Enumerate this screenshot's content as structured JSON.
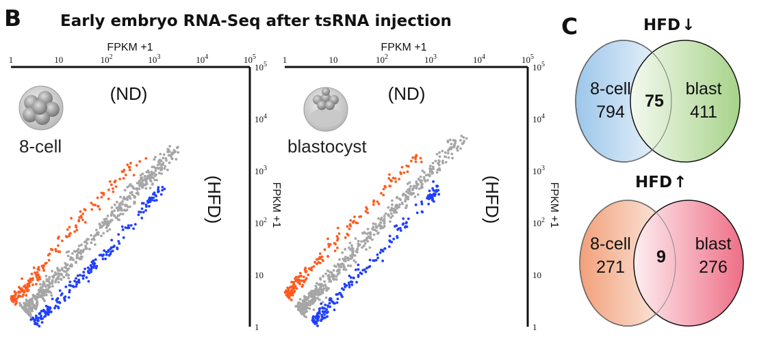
{
  "panel_b": {
    "letter": "B",
    "title": "Early embryo RNA-Seq after tsRNA injection"
  },
  "panel_c": {
    "letter": "C"
  },
  "chart_data": [
    {
      "type": "scatter",
      "stage_label": "8-cell",
      "x_axis_label": "FPKM +1",
      "y_axis_label": "FPKM +1",
      "x_group_label": "(ND)",
      "y_group_label": "(HFD)",
      "xscale": "log",
      "yscale": "log",
      "xlim": [
        1,
        100000
      ],
      "ylim": [
        1,
        100000
      ],
      "x_ticks": [
        "1",
        "10",
        "10^2",
        "10^3",
        "10^4",
        "10^5"
      ],
      "y_ticks": [
        "10^5",
        "10^4",
        "10^3",
        "10^2",
        "10",
        "1"
      ],
      "series": [
        {
          "color": "#a6a6a6",
          "points": [
            [
              2,
              2
            ],
            [
              5,
              5
            ],
            [
              20,
              20
            ],
            [
              100,
              100
            ],
            [
              400,
              400
            ],
            [
              1000,
              1000
            ],
            [
              3000,
              3000
            ]
          ]
        },
        {
          "color": "#ff5a1f",
          "points": [
            [
              1.1,
              3
            ],
            [
              2,
              6
            ],
            [
              5,
              15
            ],
            [
              20,
              80
            ],
            [
              100,
              400
            ],
            [
              600,
              2000
            ]
          ]
        },
        {
          "color": "#1f3fff",
          "points": [
            [
              3,
              1.2
            ],
            [
              8,
              2.5
            ],
            [
              30,
              9
            ],
            [
              150,
              40
            ],
            [
              700,
              200
            ],
            [
              1500,
              500
            ]
          ]
        }
      ]
    },
    {
      "type": "scatter",
      "stage_label": "blastocyst",
      "x_axis_label": "FPKM +1",
      "y_axis_label": "FPKM +1",
      "x_group_label": "(ND)",
      "y_group_label": "(HFD)",
      "xscale": "log",
      "yscale": "log",
      "xlim": [
        1,
        100000
      ],
      "ylim": [
        1,
        100000
      ],
      "x_ticks": [
        "1",
        "10",
        "10^2",
        "10^3",
        "10^4",
        "10^5"
      ],
      "y_ticks": [
        "10^5",
        "10^4",
        "10^3",
        "10^2",
        "10",
        "1"
      ],
      "series": [
        {
          "color": "#a6a6a6",
          "points": [
            [
              2,
              2
            ],
            [
              6,
              6
            ],
            [
              30,
              30
            ],
            [
              200,
              200
            ],
            [
              1000,
              1000
            ],
            [
              5000,
              5000
            ]
          ]
        },
        {
          "color": "#ff5a1f",
          "points": [
            [
              1.1,
              4
            ],
            [
              2,
              8
            ],
            [
              6,
              22
            ],
            [
              30,
              120
            ],
            [
              150,
              600
            ],
            [
              600,
              2000
            ]
          ]
        },
        {
          "color": "#1f3fff",
          "points": [
            [
              4,
              1.2
            ],
            [
              10,
              3
            ],
            [
              40,
              12
            ],
            [
              200,
              60
            ],
            [
              900,
              280
            ],
            [
              1500,
              500
            ]
          ]
        }
      ]
    }
  ],
  "venn": [
    {
      "title": "HFD",
      "arrow": "↓",
      "left_label": "8-cell",
      "left_value": "794",
      "overlap_value": "75",
      "right_label": "blast",
      "right_value": "411",
      "left_color": "#9cc6ea",
      "right_color": "#a7d38a"
    },
    {
      "title": "HFD",
      "arrow": "↑",
      "left_label": "8-cell",
      "left_value": "271",
      "overlap_value": "9",
      "right_label": "blast",
      "right_value": "276",
      "left_color": "#f2a07a",
      "right_color": "#ee6e86"
    }
  ]
}
